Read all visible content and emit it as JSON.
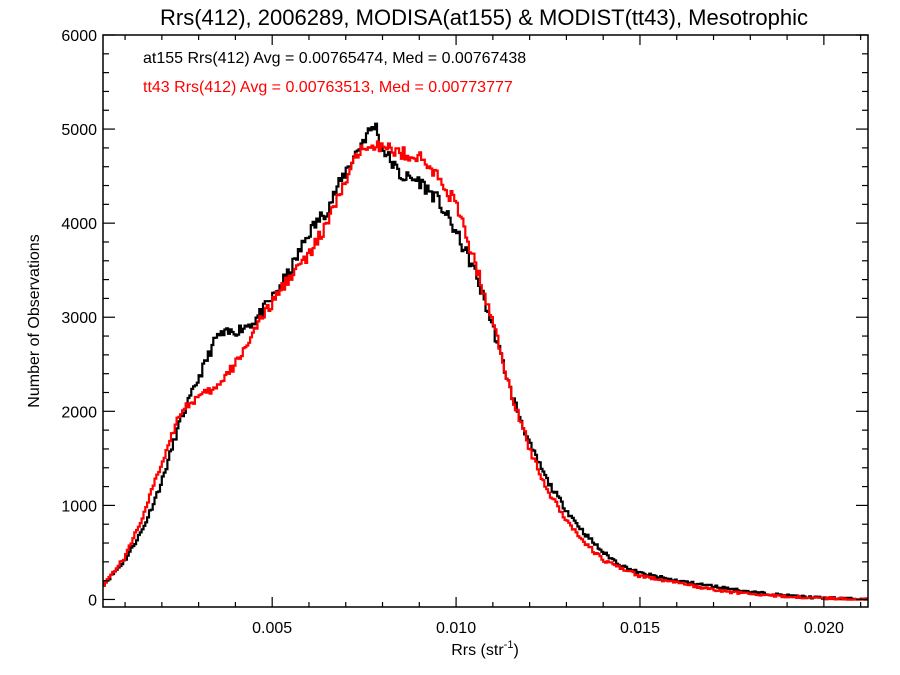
{
  "chart_data": {
    "type": "line",
    "step": true,
    "title": "Rrs(412), 2006289, MODISA(at155) & MODIST(tt43), Mesotrophic",
    "xlabel": "Rrs (str",
    "xlabel_sup": "-1",
    "xlabel_end": ")",
    "ylabel": "Number of Observations",
    "xlim": [
      0.0004,
      0.0212
    ],
    "ylim": [
      -80,
      6000
    ],
    "x_ticks": [
      0.005,
      0.01,
      0.015,
      0.02
    ],
    "x_tick_labels": [
      "0.005",
      "0.010",
      "0.015",
      "0.020"
    ],
    "y_ticks": [
      0,
      1000,
      2000,
      3000,
      4000,
      5000,
      6000
    ],
    "y_tick_labels": [
      "0",
      "1000",
      "2000",
      "3000",
      "4000",
      "5000",
      "6000"
    ],
    "legend": [
      {
        "text": "at155 Rrs(412) Avg = 0.00765474, Med = 0.00767438",
        "color": "#000000"
      },
      {
        "text": "tt43 Rrs(412) Avg = 0.00763513, Med = 0.00773777",
        "color": "#ff0000"
      }
    ],
    "legend_position": "top-left",
    "series": [
      {
        "color": "#000000",
        "x": [
          0.0004,
          0.001,
          0.0015,
          0.002,
          0.0025,
          0.003,
          0.0035,
          0.004,
          0.0045,
          0.005,
          0.0055,
          0.006,
          0.0065,
          0.007,
          0.0075,
          0.0078,
          0.008,
          0.0085,
          0.009,
          0.0095,
          0.01,
          0.0105,
          0.011,
          0.0115,
          0.012,
          0.0125,
          0.013,
          0.0135,
          0.014,
          0.0145,
          0.015,
          0.016,
          0.017,
          0.018,
          0.019,
          0.02,
          0.0212
        ],
        "y": [
          150,
          420,
          760,
          1250,
          1900,
          2350,
          2800,
          2850,
          2950,
          3200,
          3500,
          3900,
          4150,
          4550,
          4900,
          5050,
          4800,
          4500,
          4450,
          4250,
          3900,
          3500,
          2900,
          2200,
          1650,
          1250,
          950,
          700,
          500,
          360,
          280,
          200,
          140,
          80,
          40,
          15,
          0
        ]
      },
      {
        "color": "#ff0000",
        "x": [
          0.0004,
          0.001,
          0.0015,
          0.002,
          0.0025,
          0.003,
          0.0035,
          0.004,
          0.0045,
          0.005,
          0.0055,
          0.006,
          0.0065,
          0.007,
          0.0075,
          0.0078,
          0.008,
          0.0085,
          0.009,
          0.0095,
          0.01,
          0.0105,
          0.011,
          0.0115,
          0.012,
          0.0125,
          0.013,
          0.0135,
          0.014,
          0.0145,
          0.015,
          0.016,
          0.017,
          0.018,
          0.019,
          0.02,
          0.0212
        ],
        "y": [
          150,
          450,
          900,
          1450,
          2000,
          2150,
          2250,
          2500,
          2850,
          3150,
          3450,
          3650,
          4000,
          4450,
          4850,
          4850,
          4800,
          4750,
          4700,
          4500,
          4200,
          3600,
          2950,
          2200,
          1600,
          1150,
          850,
          600,
          420,
          330,
          250,
          180,
          100,
          60,
          30,
          15,
          0
        ]
      }
    ]
  }
}
